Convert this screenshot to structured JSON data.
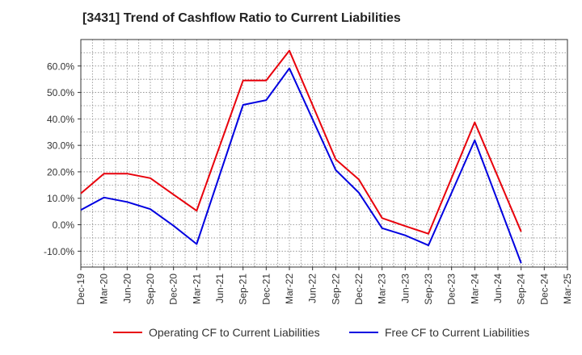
{
  "chart_data": {
    "type": "line",
    "title": "[3431]  Trend of Cashflow Ratio to Current Liabilities",
    "x": [
      "Dec-19",
      "Mar-20",
      "Jun-20",
      "Sep-20",
      "Dec-20",
      "Mar-21",
      "Jun-21",
      "Sep-21",
      "Dec-21",
      "Mar-22",
      "Jun-22",
      "Sep-22",
      "Dec-22",
      "Mar-23",
      "Jun-23",
      "Sep-23",
      "Dec-23",
      "Mar-24",
      "Jun-24",
      "Sep-24",
      "Dec-24",
      "Mar-25"
    ],
    "yticks": [
      "-10.0%",
      "0.0%",
      "10.0%",
      "20.0%",
      "30.0%",
      "40.0%",
      "50.0%",
      "60.0%"
    ],
    "ylim": [
      -16,
      70
    ],
    "grid": true,
    "legend_position": "bottom",
    "series": [
      {
        "name": "Operating CF to Current Liabilities",
        "color": "#e8000b",
        "values": [
          11.8,
          19.3,
          19.3,
          17.6,
          11.4,
          5.3,
          null,
          54.5,
          54.5,
          65.8,
          null,
          24.7,
          17.1,
          2.5,
          -0.5,
          -3.4,
          null,
          38.7,
          null,
          -2.6,
          null,
          null
        ]
      },
      {
        "name": "Free CF to Current Liabilities",
        "color": "#0000e0",
        "values": [
          5.6,
          10.3,
          8.6,
          5.9,
          -0.4,
          -7.3,
          null,
          45.3,
          47.1,
          59.1,
          null,
          20.7,
          12.1,
          -1.3,
          -4.0,
          -7.8,
          null,
          31.9,
          null,
          -14.5,
          null,
          null
        ]
      }
    ]
  }
}
